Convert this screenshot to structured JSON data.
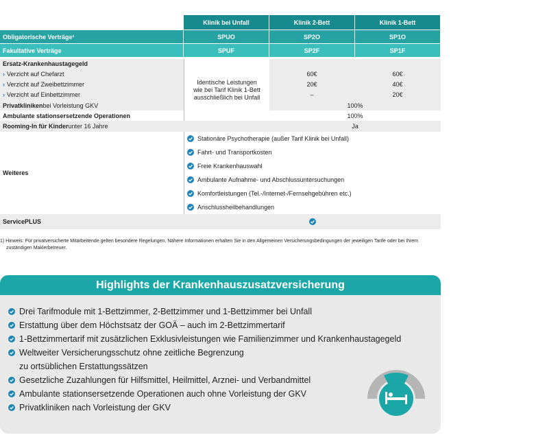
{
  "table": {
    "columns": [
      "Klinik bei Unfall",
      "Klinik 2-Bett",
      "Klinik 1-Bett"
    ],
    "obligatory": {
      "label": "Obligatorische Verträge¹",
      "values": [
        "SPUO",
        "SP2O",
        "SP1O"
      ]
    },
    "optional": {
      "label": "Fakultative Verträge",
      "values": [
        "SPUF",
        "SP2F",
        "SP1F"
      ]
    },
    "ersatz": {
      "title": "Ersatz-Krankenhaustagegeld",
      "items": [
        {
          "label": "Verzicht auf Chefarzt",
          "values": [
            "60€",
            "60€"
          ]
        },
        {
          "label": "Verzicht auf Zweibettzimmer",
          "values": [
            "20€",
            "40€"
          ]
        },
        {
          "label": "Verzicht auf Einbettzimmer",
          "values": [
            "–",
            "20€"
          ]
        }
      ],
      "note": "Identische Leistungen wie bei Tarif Klinik 1-Bett ausschließlich bei Unfall"
    },
    "private": {
      "bold": "Privatkliniken",
      "rest": " bei Vorleistung GKV",
      "value": "100%"
    },
    "ambulant": {
      "label": "Ambulante stationsersetzende Operationen",
      "value": "100%"
    },
    "rooming": {
      "bold": "Rooming-In für Kinder",
      "rest": " unter 16 Jahre",
      "value": "Ja"
    },
    "further": {
      "label": "Weiteres",
      "items": [
        "Stationäre Psychotherapie (außer Tarif Klinik bei Unfall)",
        "Fahrt- und Transportkosten",
        "Freie Krankenhauswahl",
        "Ambulante Aufnahme- und Abschlussuntersuchungen",
        "Komfortleistungen (Tel.-/Internet-/Fernsehgebühren etc.)",
        "Anschlussheilbehandlungen"
      ]
    },
    "service": {
      "label": "ServicePLUS"
    }
  },
  "footnote": "1) Hinweis: Für privatversicherte Mitarbeitende gelten besondere Regelungen. Nähere Informationen erhalten Sie in den Allgemeinen Versicherungsbedingungen der jeweiligen Tarife oder bei Ihrem zuständigen Maklerbetreuer.",
  "highlights": {
    "title": "Highlights der Krankenhauszusatzversicherung",
    "items": [
      "Drei Tarifmodule mit 1-Bettzimmer, 2-Bettzimmer und 1-Bettzimmer bei Unfall",
      "Erstattung über dem Höchstsatz der GOÄ – auch im 2-Bettzimmertarif",
      "1-Bettzimmertarif mit zusätzlichen Exklusivleistungen wie Familienzimmer und Krankenhaustagegeld",
      [
        "Weltweiter Versicherungsschutz ohne zeitliche Begrenzung",
        "zu ortsüblichen Erstattungssätzen"
      ],
      "Gesetzliche Zuzahlungen für Hilfsmittel, Heilmittel, Arznei- und Verbandmittel",
      "Ambulante stationsersetzende Operationen auch ohne Vorleistung der GKV",
      "Privatkliniken nach Vorleistung der GKV"
    ]
  }
}
